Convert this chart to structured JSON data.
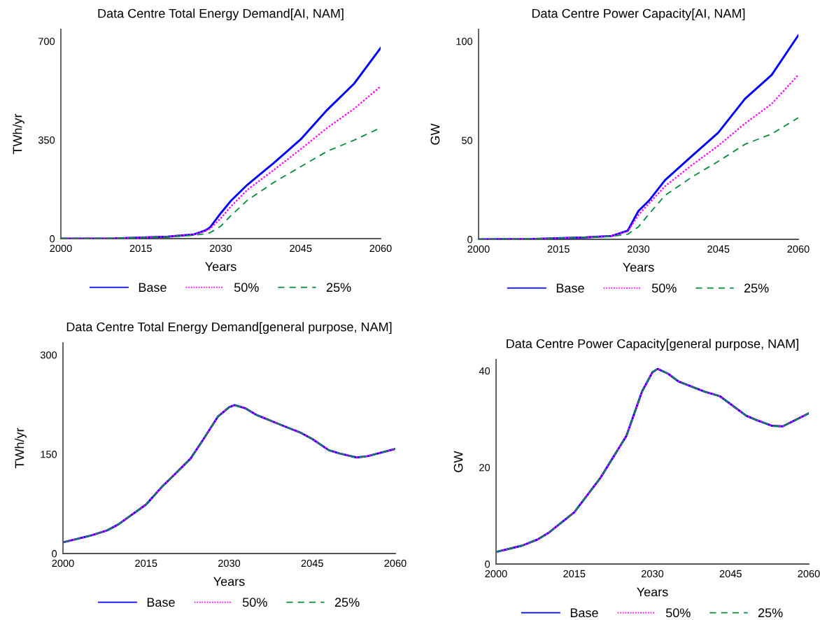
{
  "chart_data": [
    {
      "type": "line",
      "title": "Data Centre Total Energy Demand[AI, NAM]",
      "xlabel": "Years",
      "ylabel": "TWh/yr",
      "xlim": [
        2000,
        2060
      ],
      "ylim": [
        0,
        742
      ],
      "xticks": [
        2000,
        2015,
        2030,
        2045,
        2060
      ],
      "yticks": [
        0,
        350,
        700
      ],
      "grid": false,
      "legend": "bottom",
      "x": [
        2000,
        2010,
        2020,
        2025,
        2027,
        2028,
        2030,
        2032,
        2035,
        2040,
        2045,
        2050,
        2055,
        2060
      ],
      "series": [
        {
          "name": "Base",
          "color": "#0000ff",
          "line_style": "solid",
          "values": [
            0,
            1,
            7,
            15,
            28,
            40,
            90,
            136,
            191,
            269,
            352,
            457,
            549,
            676
          ]
        },
        {
          "name": "50%",
          "color": "#ff00ff",
          "line_style": "dotted",
          "values": [
            0,
            1,
            7,
            15,
            26,
            35,
            72,
            116,
            173,
            244,
            317,
            393,
            460,
            540
          ]
        },
        {
          "name": "25%",
          "color": "#008c3a",
          "line_style": "dashed",
          "values": [
            0,
            1,
            6,
            12,
            17,
            21,
            44,
            83,
            136,
            200,
            255,
            310,
            349,
            393
          ]
        }
      ]
    },
    {
      "type": "line",
      "title": "Data Centre Power Capacity[AI, NAM]",
      "xlabel": "Years",
      "ylabel": "GW",
      "xlim": [
        2000,
        2060
      ],
      "ylim": [
        0,
        106
      ],
      "xticks": [
        2000,
        2015,
        2030,
        2045,
        2060
      ],
      "yticks": [
        0,
        50,
        100
      ],
      "grid": false,
      "legend": "bottom",
      "x": [
        2000,
        2010,
        2020,
        2025,
        2028,
        2030,
        2032,
        2035,
        2040,
        2045,
        2050,
        2055,
        2060
      ],
      "series": [
        {
          "name": "Base",
          "color": "#0000ff",
          "line_style": "solid",
          "values": [
            0,
            0.2,
            1,
            1.7,
            4.4,
            14.3,
            19.6,
            29.9,
            42,
            53.9,
            71,
            83,
            103
          ]
        },
        {
          "name": "50%",
          "color": "#ff00ff",
          "line_style": "dotted",
          "values": [
            0,
            0.2,
            1,
            1.7,
            4,
            12.3,
            18.2,
            26.8,
            37.4,
            47.3,
            58.5,
            68.4,
            83
          ]
        },
        {
          "name": "25%",
          "color": "#008c3a",
          "line_style": "dashed",
          "values": [
            0,
            0.2,
            1,
            1.5,
            2.6,
            6.3,
            12.9,
            22.2,
            31.4,
            39.4,
            48,
            53.2,
            61.4
          ]
        }
      ]
    },
    {
      "type": "line",
      "title": "Data Centre Total Energy Demand[general purpose, NAM]",
      "xlabel": "Years",
      "ylabel": "TWh/yr",
      "xlim": [
        2000,
        2060
      ],
      "ylim": [
        0,
        318
      ],
      "xticks": [
        2000,
        2015,
        2030,
        2045,
        2060
      ],
      "yticks": [
        0,
        150,
        300
      ],
      "grid": false,
      "legend": "bottom",
      "x": [
        2000,
        2005,
        2008,
        2010,
        2015,
        2018,
        2020,
        2023,
        2025,
        2028,
        2030,
        2031,
        2033,
        2035,
        2040,
        2043,
        2045,
        2048,
        2050,
        2053,
        2055,
        2060
      ],
      "series": [
        {
          "name": "Base",
          "color": "#0000ff",
          "line_style": "solid",
          "values": [
            17,
            27,
            35,
            44,
            74,
            102,
            118,
            143,
            168,
            207,
            221,
            224,
            219,
            209,
            192,
            182,
            173,
            156,
            151,
            145,
            147,
            158
          ]
        },
        {
          "name": "50%",
          "color": "#ff00ff",
          "line_style": "dotted",
          "values": [
            17,
            27,
            35,
            44,
            74,
            102,
            118,
            143,
            168,
            207,
            221,
            224,
            219,
            209,
            192,
            182,
            173,
            156,
            151,
            145,
            147,
            158
          ]
        },
        {
          "name": "25%",
          "color": "#008c3a",
          "line_style": "dashed",
          "values": [
            17,
            27,
            35,
            44,
            74,
            102,
            118,
            143,
            168,
            207,
            221,
            224,
            219,
            209,
            192,
            182,
            173,
            156,
            151,
            145,
            147,
            158
          ]
        }
      ]
    },
    {
      "type": "line",
      "title": "Data Centre Power Capacity[general purpose, NAM]",
      "xlabel": "Years",
      "ylabel": "GW",
      "xlim": [
        2000,
        2060
      ],
      "ylim": [
        0,
        42.3
      ],
      "xticks": [
        2000,
        2015,
        2030,
        2045,
        2060
      ],
      "yticks": [
        0,
        20,
        40
      ],
      "grid": false,
      "legend": "bottom",
      "x": [
        2000,
        2005,
        2008,
        2010,
        2015,
        2020,
        2025,
        2028,
        2030,
        2031,
        2033,
        2035,
        2040,
        2043,
        2045,
        2048,
        2050,
        2053,
        2055,
        2060
      ],
      "series": [
        {
          "name": "Base",
          "color": "#0000ff",
          "line_style": "solid",
          "values": [
            2.5,
            3.8,
            5.1,
            6.4,
            10.7,
            17.8,
            26.5,
            35.7,
            39.7,
            40.4,
            39.4,
            37.8,
            35.7,
            34.7,
            33.1,
            30.7,
            29.8,
            28.6,
            28.5,
            31.2
          ]
        },
        {
          "name": "50%",
          "color": "#ff00ff",
          "line_style": "dotted",
          "values": [
            2.5,
            3.8,
            5.1,
            6.4,
            10.7,
            17.8,
            26.5,
            35.7,
            39.7,
            40.4,
            39.4,
            37.8,
            35.7,
            34.7,
            33.1,
            30.7,
            29.8,
            28.6,
            28.5,
            31.2
          ]
        },
        {
          "name": "25%",
          "color": "#008c3a",
          "line_style": "dashed",
          "values": [
            2.5,
            3.8,
            5.1,
            6.4,
            10.7,
            17.8,
            26.5,
            35.7,
            39.7,
            40.4,
            39.4,
            37.8,
            35.7,
            34.7,
            33.1,
            30.7,
            29.8,
            28.6,
            28.5,
            31.2
          ]
        }
      ]
    }
  ]
}
